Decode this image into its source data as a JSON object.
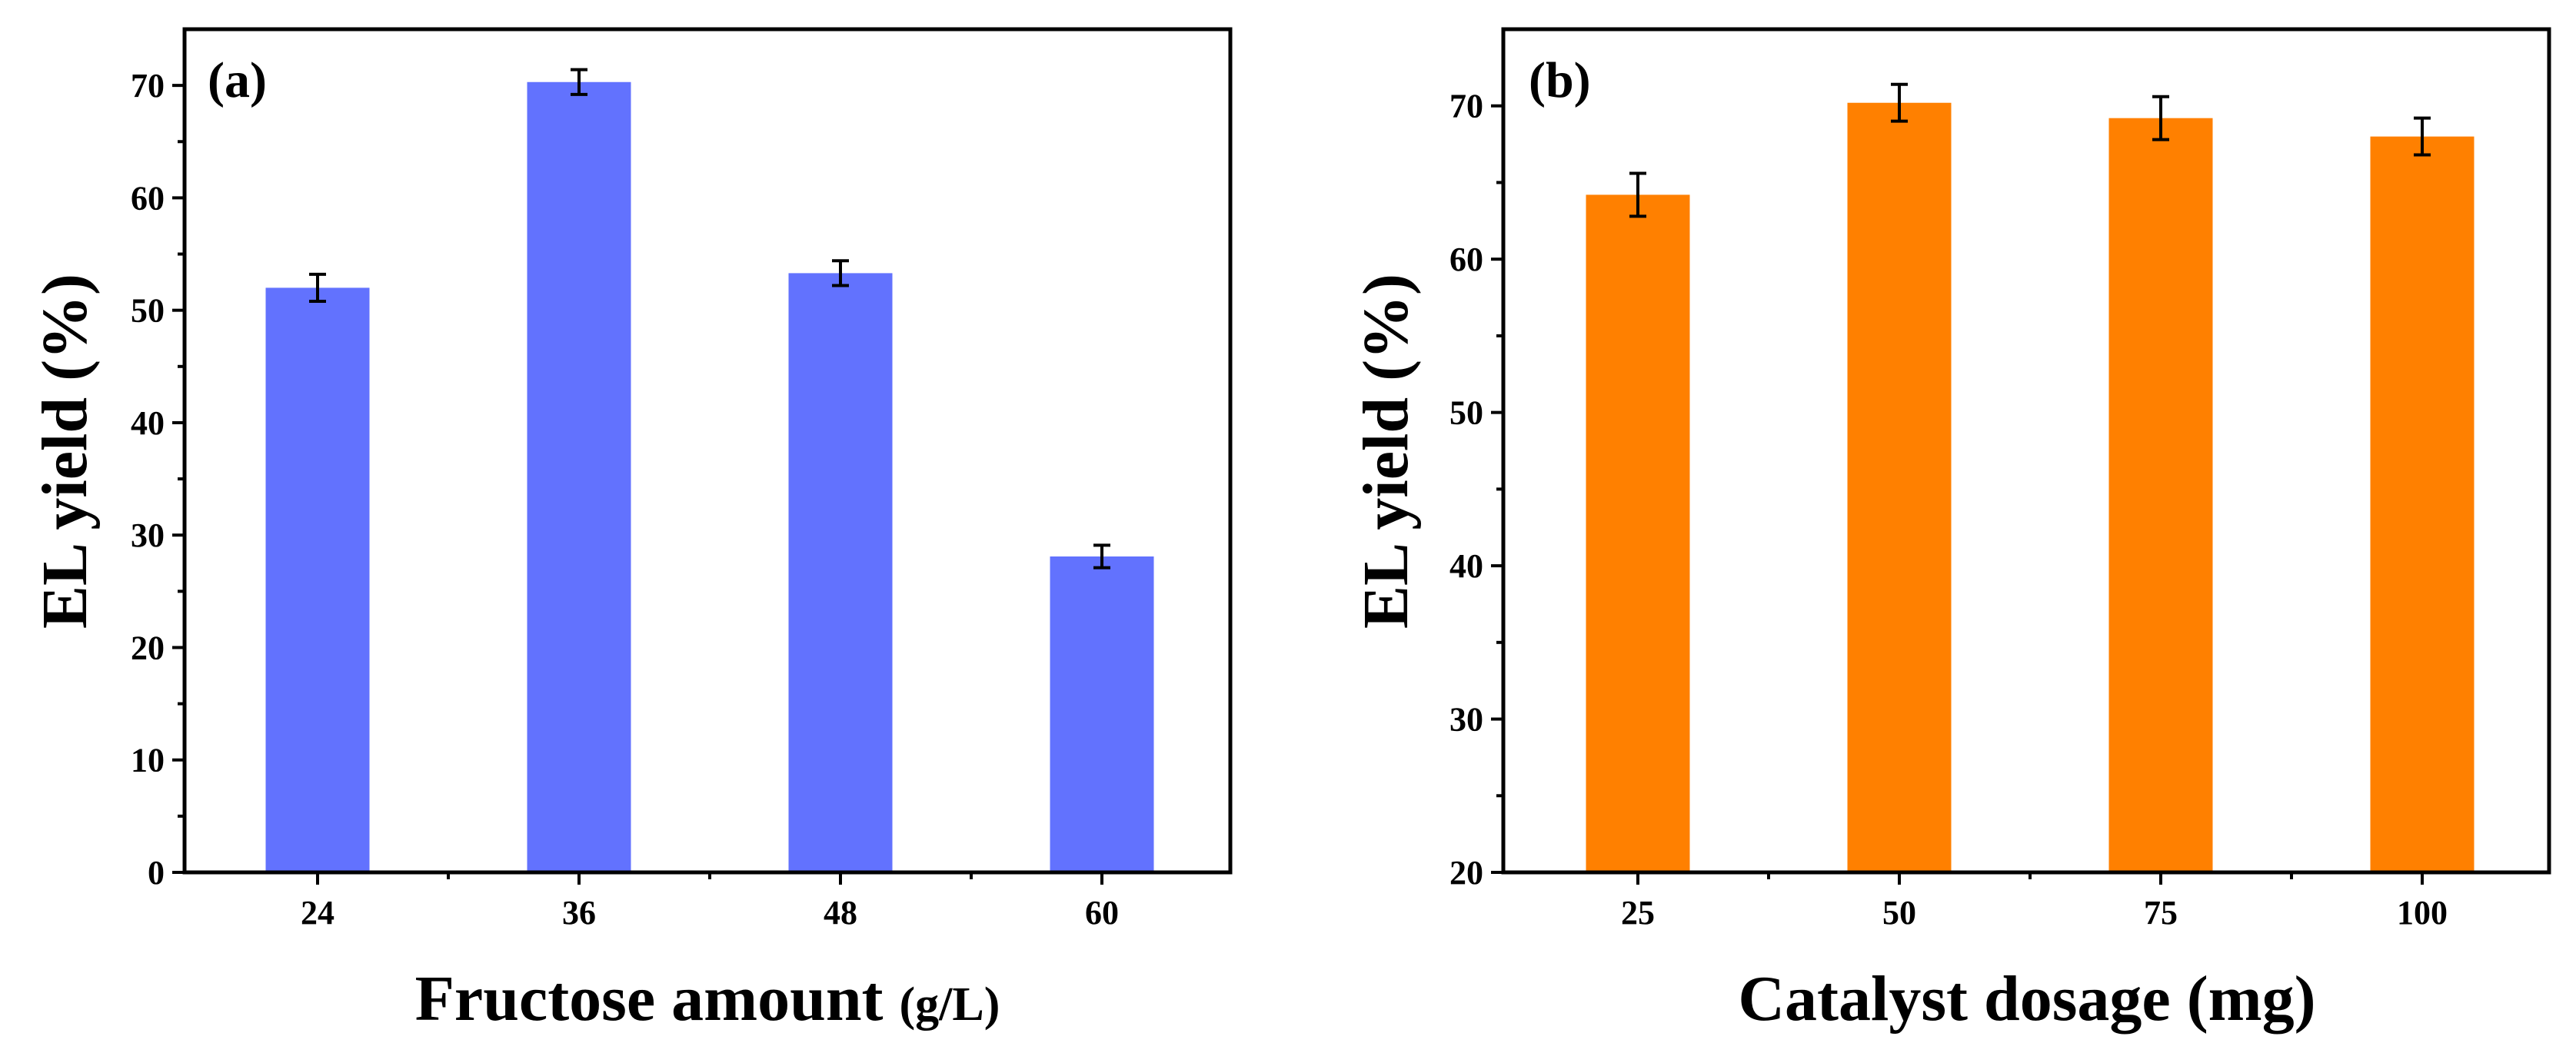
{
  "colors": {
    "panel_a_bar": "#6272fe",
    "panel_b_bar": "#ff8000",
    "axis": "#000000"
  },
  "chart_data": [
    {
      "type": "bar",
      "panel_label": "(a)",
      "xlabel": "Fructose amount",
      "xlabel_unit": "(g/L)",
      "ylabel": "EL yield (%)",
      "categories": [
        "24",
        "36",
        "48",
        "60"
      ],
      "values": [
        52,
        70.3,
        53.3,
        28.1
      ],
      "errors": [
        1.2,
        1.1,
        1.1,
        1.0
      ],
      "ylim": [
        0,
        75
      ],
      "yticks": [
        0,
        10,
        20,
        30,
        40,
        50,
        60,
        70
      ],
      "ytick_labels": [
        "0",
        "10",
        "20",
        "30",
        "40",
        "50",
        "60",
        "70"
      ],
      "minor_step": 5,
      "color": "#6272fe"
    },
    {
      "type": "bar",
      "panel_label": "(b)",
      "xlabel": "Catalyst dosage (mg)",
      "ylabel": "EL yield (%)",
      "categories": [
        "25",
        "50",
        "75",
        "100"
      ],
      "values": [
        64.2,
        70.2,
        69.2,
        68.0
      ],
      "errors": [
        1.4,
        1.2,
        1.4,
        1.2
      ],
      "ylim": [
        20,
        75
      ],
      "yticks": [
        20,
        30,
        40,
        50,
        60,
        70
      ],
      "ytick_labels": [
        "20",
        "30",
        "40",
        "50",
        "60",
        "70"
      ],
      "minor_step": 5,
      "color": "#ff8000"
    }
  ]
}
